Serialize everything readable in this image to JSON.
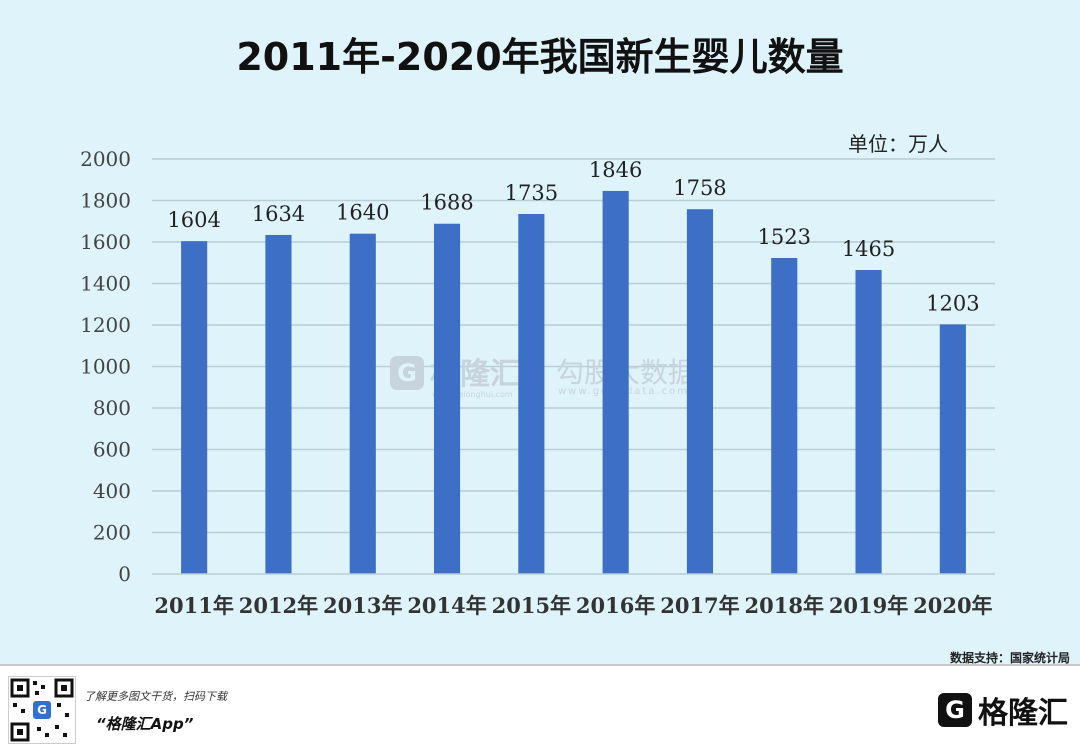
{
  "chart_data": {
    "type": "bar",
    "title": "2011年-2020年我国新生婴儿数量",
    "unit_label": "单位：万人",
    "categories": [
      "2011年",
      "2012年",
      "2013年",
      "2014年",
      "2015年",
      "2016年",
      "2017年",
      "2018年",
      "2019年",
      "2020年"
    ],
    "values": [
      1604,
      1634,
      1640,
      1688,
      1735,
      1846,
      1758,
      1523,
      1465,
      1203
    ],
    "yticks": [
      0,
      200,
      400,
      600,
      800,
      1000,
      1200,
      1400,
      1600,
      1800,
      2000
    ],
    "ylim": [
      0,
      2000
    ],
    "grid": true,
    "bar_color": "#3d6fc6",
    "grid_color": "#b9cdd8"
  },
  "watermark": {
    "brand": "格隆汇",
    "brand_sub": "www.gelonghui.com",
    "data_brand": "勾股大数据",
    "data_url": "www.gogudata.com"
  },
  "footer": {
    "source": "数据支持：国家统计局",
    "tip": "了解更多图文干货，扫码下载",
    "app": "“格隆汇App”",
    "brand": "格隆汇",
    "brand_icon": "G"
  }
}
